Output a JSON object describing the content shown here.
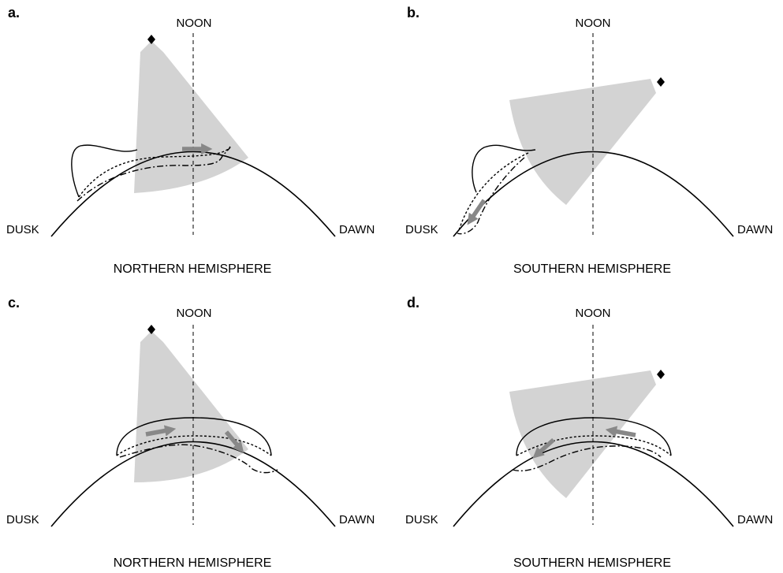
{
  "panels": [
    {
      "letter": "a.",
      "noon": "NOON",
      "dusk": "DUSK",
      "dawn": "DAWN",
      "hemisphere": "NORTHERN HEMISPHERE"
    },
    {
      "letter": "b.",
      "noon": "NOON",
      "dusk": "DUSK",
      "dawn": "DAWN",
      "hemisphere": "SOUTHERN HEMISPHERE"
    },
    {
      "letter": "c.",
      "noon": "NOON",
      "dusk": "DUSK",
      "dawn": "DAWN",
      "hemisphere": "NORTHERN HEMISPHERE"
    },
    {
      "letter": "d.",
      "noon": "NOON",
      "dusk": "DUSK",
      "dawn": "DAWN",
      "hemisphere": "SOUTHERN HEMISPHERE"
    }
  ],
  "colors": {
    "fan": "#d3d3d3",
    "arrow": "#888888",
    "line": "#000000"
  }
}
